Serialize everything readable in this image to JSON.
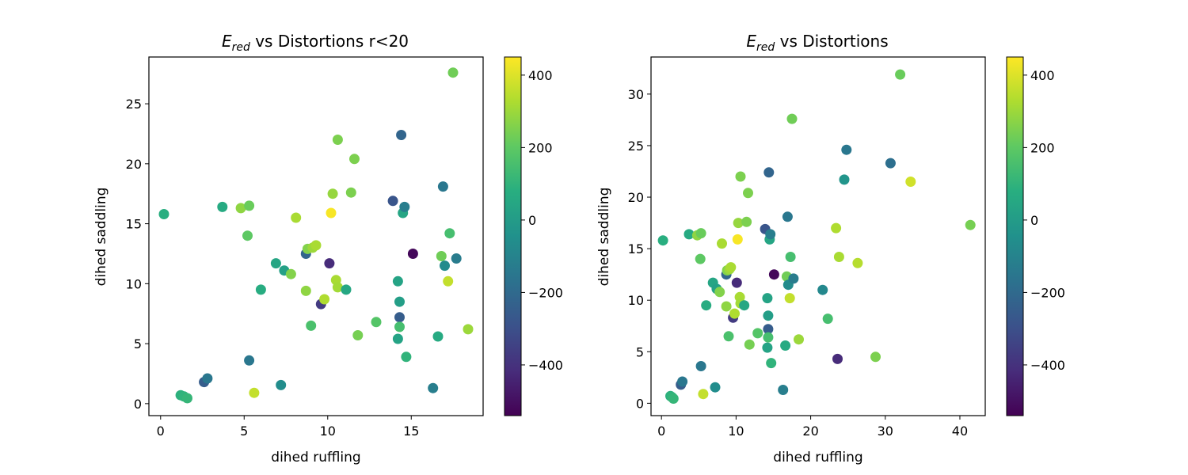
{
  "chart_data": [
    {
      "type": "scatter",
      "title_main": "E",
      "title_sub": "red",
      "title_rest": " vs Distortions r<20",
      "xlabel": "dihed ruffling",
      "ylabel": "dihed saddling",
      "xlim": [
        -0.7,
        19.3
      ],
      "ylim": [
        -1.0,
        28.9
      ],
      "xticks": [
        0,
        5,
        10,
        15
      ],
      "yticks": [
        0,
        5,
        10,
        15,
        20,
        25
      ],
      "colorbar": {
        "label_ticks": [
          -400,
          -200,
          0,
          200,
          400
        ],
        "range": [
          -540,
          450
        ],
        "colormap": "viridis"
      },
      "grid": false,
      "points": [
        {
          "x": 0.2,
          "y": 15.8,
          "c": 80
        },
        {
          "x": 1.2,
          "y": 0.7,
          "c": 90
        },
        {
          "x": 1.4,
          "y": 0.6,
          "c": 100
        },
        {
          "x": 1.6,
          "y": 0.45,
          "c": 110
        },
        {
          "x": 2.6,
          "y": 1.8,
          "c": -250
        },
        {
          "x": 2.8,
          "y": 2.1,
          "c": -150
        },
        {
          "x": 3.7,
          "y": 16.4,
          "c": 60
        },
        {
          "x": 4.8,
          "y": 16.3,
          "c": 280
        },
        {
          "x": 5.2,
          "y": 14.0,
          "c": 200
        },
        {
          "x": 5.3,
          "y": 16.5,
          "c": 220
        },
        {
          "x": 5.3,
          "y": 3.6,
          "c": -150
        },
        {
          "x": 5.6,
          "y": 0.9,
          "c": 360
        },
        {
          "x": 6.0,
          "y": 9.5,
          "c": 70
        },
        {
          "x": 6.9,
          "y": 11.7,
          "c": 40
        },
        {
          "x": 7.2,
          "y": 1.55,
          "c": -60
        },
        {
          "x": 7.4,
          "y": 11.1,
          "c": 20
        },
        {
          "x": 7.8,
          "y": 10.8,
          "c": 260
        },
        {
          "x": 8.1,
          "y": 15.5,
          "c": 320
        },
        {
          "x": 8.7,
          "y": 9.4,
          "c": 280
        },
        {
          "x": 8.7,
          "y": 12.5,
          "c": -220
        },
        {
          "x": 8.8,
          "y": 12.9,
          "c": 260
        },
        {
          "x": 9.0,
          "y": 6.5,
          "c": 160
        },
        {
          "x": 9.1,
          "y": 13.0,
          "c": 300
        },
        {
          "x": 9.3,
          "y": 13.2,
          "c": 320
        },
        {
          "x": 9.6,
          "y": 8.3,
          "c": -370
        },
        {
          "x": 9.8,
          "y": 8.7,
          "c": 330
        },
        {
          "x": 10.2,
          "y": 15.9,
          "c": 440
        },
        {
          "x": 10.1,
          "y": 11.7,
          "c": -420
        },
        {
          "x": 10.3,
          "y": 17.5,
          "c": 290
        },
        {
          "x": 10.5,
          "y": 10.3,
          "c": 320
        },
        {
          "x": 10.6,
          "y": 9.7,
          "c": 310
        },
        {
          "x": 10.6,
          "y": 22.0,
          "c": 250
        },
        {
          "x": 11.1,
          "y": 9.5,
          "c": 50
        },
        {
          "x": 11.4,
          "y": 17.6,
          "c": 250
        },
        {
          "x": 11.6,
          "y": 20.4,
          "c": 250
        },
        {
          "x": 11.8,
          "y": 5.7,
          "c": 240
        },
        {
          "x": 12.9,
          "y": 6.8,
          "c": 180
        },
        {
          "x": 13.9,
          "y": 16.9,
          "c": -280
        },
        {
          "x": 14.2,
          "y": 10.2,
          "c": 30
        },
        {
          "x": 14.2,
          "y": 5.4,
          "c": 30
        },
        {
          "x": 14.3,
          "y": 8.5,
          "c": 10
        },
        {
          "x": 14.3,
          "y": 7.2,
          "c": -250
        },
        {
          "x": 14.3,
          "y": 6.4,
          "c": 150
        },
        {
          "x": 14.4,
          "y": 22.4,
          "c": -220
        },
        {
          "x": 14.5,
          "y": 15.9,
          "c": 40
        },
        {
          "x": 14.6,
          "y": 16.4,
          "c": -120
        },
        {
          "x": 14.7,
          "y": 3.9,
          "c": 100
        },
        {
          "x": 15.1,
          "y": 12.5,
          "c": -520
        },
        {
          "x": 16.3,
          "y": 1.3,
          "c": -120
        },
        {
          "x": 16.6,
          "y": 5.6,
          "c": 60
        },
        {
          "x": 16.8,
          "y": 12.3,
          "c": 230
        },
        {
          "x": 16.9,
          "y": 18.1,
          "c": -150
        },
        {
          "x": 17.0,
          "y": 11.5,
          "c": -70
        },
        {
          "x": 17.2,
          "y": 10.2,
          "c": 360
        },
        {
          "x": 17.3,
          "y": 14.2,
          "c": 150
        },
        {
          "x": 17.5,
          "y": 27.6,
          "c": 230
        },
        {
          "x": 17.7,
          "y": 12.1,
          "c": -130
        },
        {
          "x": 18.4,
          "y": 6.2,
          "c": 300
        }
      ]
    },
    {
      "type": "scatter",
      "title_main": "E",
      "title_sub": "red",
      "title_rest": " vs Distortions",
      "xlabel": "dihed ruffling",
      "ylabel": "dihed saddling",
      "xlim": [
        -1.4,
        43.4
      ],
      "ylim": [
        -1.2,
        33.6
      ],
      "xticks": [
        0,
        10,
        20,
        30,
        40
      ],
      "yticks": [
        0,
        5,
        10,
        15,
        20,
        25,
        30
      ],
      "colorbar": {
        "label_ticks": [
          -400,
          -200,
          0,
          200,
          400
        ],
        "range": [
          -540,
          450
        ],
        "colormap": "viridis"
      },
      "grid": false,
      "points": [
        {
          "x": 0.2,
          "y": 15.8,
          "c": 80
        },
        {
          "x": 1.2,
          "y": 0.7,
          "c": 90
        },
        {
          "x": 1.4,
          "y": 0.6,
          "c": 100
        },
        {
          "x": 1.6,
          "y": 0.45,
          "c": 110
        },
        {
          "x": 2.6,
          "y": 1.8,
          "c": -250
        },
        {
          "x": 2.8,
          "y": 2.1,
          "c": -150
        },
        {
          "x": 3.7,
          "y": 16.4,
          "c": 60
        },
        {
          "x": 4.8,
          "y": 16.3,
          "c": 280
        },
        {
          "x": 5.2,
          "y": 14.0,
          "c": 200
        },
        {
          "x": 5.3,
          "y": 16.5,
          "c": 220
        },
        {
          "x": 5.3,
          "y": 3.6,
          "c": -150
        },
        {
          "x": 5.6,
          "y": 0.9,
          "c": 360
        },
        {
          "x": 6.0,
          "y": 9.5,
          "c": 70
        },
        {
          "x": 6.9,
          "y": 11.7,
          "c": 40
        },
        {
          "x": 7.2,
          "y": 1.55,
          "c": -60
        },
        {
          "x": 7.4,
          "y": 11.1,
          "c": 20
        },
        {
          "x": 7.8,
          "y": 10.8,
          "c": 260
        },
        {
          "x": 8.1,
          "y": 15.5,
          "c": 320
        },
        {
          "x": 8.7,
          "y": 9.4,
          "c": 280
        },
        {
          "x": 8.7,
          "y": 12.5,
          "c": -220
        },
        {
          "x": 8.8,
          "y": 12.9,
          "c": 260
        },
        {
          "x": 9.0,
          "y": 6.5,
          "c": 160
        },
        {
          "x": 9.1,
          "y": 13.0,
          "c": 300
        },
        {
          "x": 9.3,
          "y": 13.2,
          "c": 320
        },
        {
          "x": 9.6,
          "y": 8.3,
          "c": -370
        },
        {
          "x": 9.8,
          "y": 8.7,
          "c": 330
        },
        {
          "x": 10.2,
          "y": 15.9,
          "c": 440
        },
        {
          "x": 10.1,
          "y": 11.7,
          "c": -420
        },
        {
          "x": 10.3,
          "y": 17.5,
          "c": 290
        },
        {
          "x": 10.5,
          "y": 10.3,
          "c": 320
        },
        {
          "x": 10.6,
          "y": 9.7,
          "c": 310
        },
        {
          "x": 10.6,
          "y": 22.0,
          "c": 250
        },
        {
          "x": 11.1,
          "y": 9.5,
          "c": 50
        },
        {
          "x": 11.4,
          "y": 17.6,
          "c": 250
        },
        {
          "x": 11.6,
          "y": 20.4,
          "c": 250
        },
        {
          "x": 11.8,
          "y": 5.7,
          "c": 240
        },
        {
          "x": 12.9,
          "y": 6.8,
          "c": 180
        },
        {
          "x": 13.9,
          "y": 16.9,
          "c": -280
        },
        {
          "x": 14.2,
          "y": 10.2,
          "c": 30
        },
        {
          "x": 14.2,
          "y": 5.4,
          "c": 30
        },
        {
          "x": 14.3,
          "y": 8.5,
          "c": 10
        },
        {
          "x": 14.3,
          "y": 7.2,
          "c": -250
        },
        {
          "x": 14.3,
          "y": 6.4,
          "c": 150
        },
        {
          "x": 14.4,
          "y": 22.4,
          "c": -220
        },
        {
          "x": 14.5,
          "y": 15.9,
          "c": 40
        },
        {
          "x": 14.6,
          "y": 16.4,
          "c": -120
        },
        {
          "x": 14.7,
          "y": 3.9,
          "c": 100
        },
        {
          "x": 15.1,
          "y": 12.5,
          "c": -520
        },
        {
          "x": 16.3,
          "y": 1.3,
          "c": -120
        },
        {
          "x": 16.6,
          "y": 5.6,
          "c": 60
        },
        {
          "x": 16.8,
          "y": 12.3,
          "c": 230
        },
        {
          "x": 16.9,
          "y": 18.1,
          "c": -150
        },
        {
          "x": 17.0,
          "y": 11.5,
          "c": -70
        },
        {
          "x": 17.2,
          "y": 10.2,
          "c": 360
        },
        {
          "x": 17.3,
          "y": 14.2,
          "c": 150
        },
        {
          "x": 17.5,
          "y": 27.6,
          "c": 230
        },
        {
          "x": 17.7,
          "y": 12.1,
          "c": -130
        },
        {
          "x": 18.4,
          "y": 6.2,
          "c": 300
        },
        {
          "x": 21.6,
          "y": 11.0,
          "c": -80
        },
        {
          "x": 22.3,
          "y": 8.2,
          "c": 150
        },
        {
          "x": 23.4,
          "y": 17.0,
          "c": 330
        },
        {
          "x": 23.6,
          "y": 4.3,
          "c": -420
        },
        {
          "x": 23.8,
          "y": 14.2,
          "c": 320
        },
        {
          "x": 24.5,
          "y": 21.7,
          "c": -30
        },
        {
          "x": 24.8,
          "y": 24.6,
          "c": -150
        },
        {
          "x": 26.3,
          "y": 13.6,
          "c": 340
        },
        {
          "x": 28.7,
          "y": 4.5,
          "c": 250
        },
        {
          "x": 30.7,
          "y": 23.3,
          "c": -180
        },
        {
          "x": 32.0,
          "y": 31.9,
          "c": 220
        },
        {
          "x": 33.4,
          "y": 21.5,
          "c": 380
        },
        {
          "x": 41.4,
          "y": 17.3,
          "c": 240
        }
      ]
    }
  ]
}
